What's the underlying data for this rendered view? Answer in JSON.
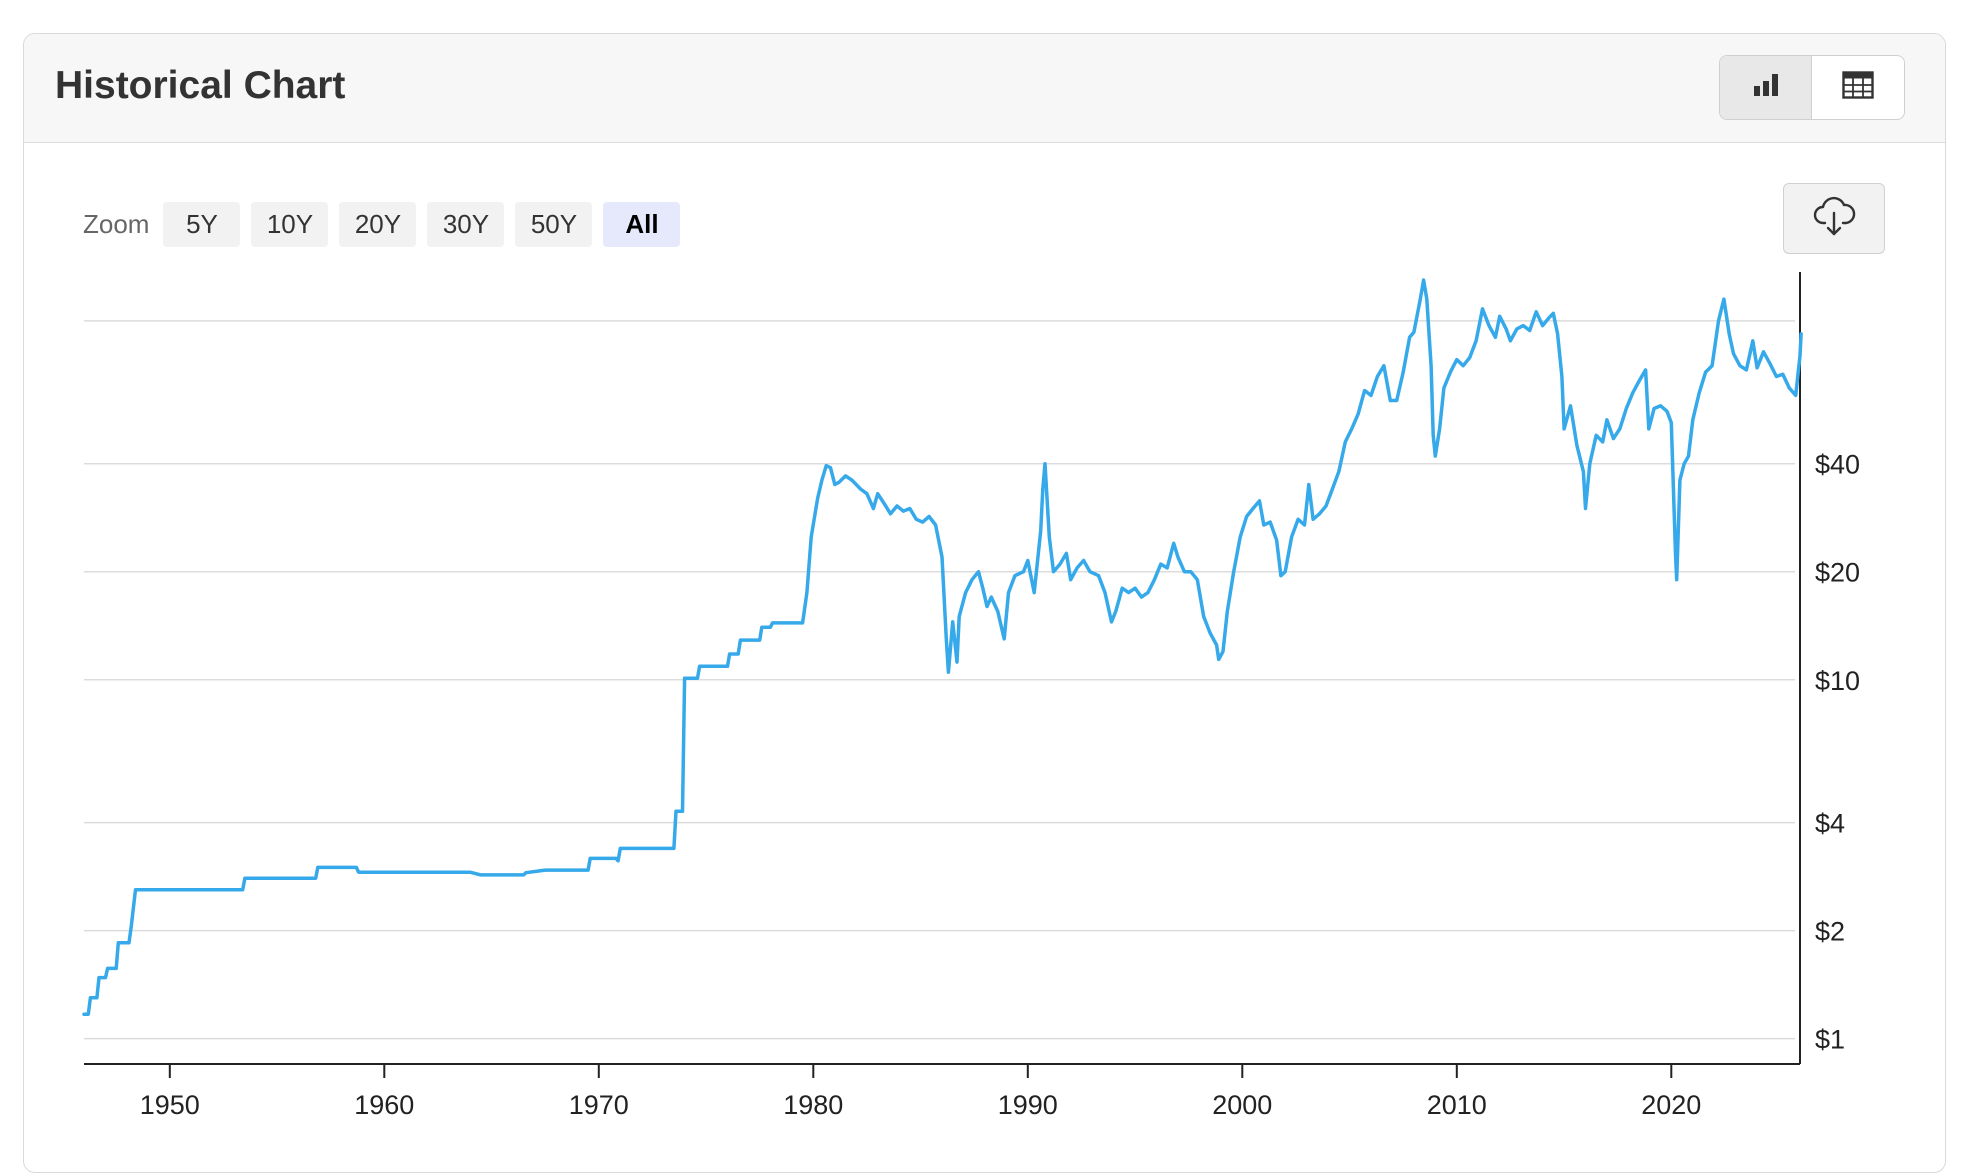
{
  "header": {
    "title": "Historical Chart"
  },
  "view_toggle": [
    {
      "icon": "bar-chart-icon",
      "active": true
    },
    {
      "icon": "table-icon",
      "active": false
    }
  ],
  "zoom": {
    "label": "Zoom",
    "options": [
      "5Y",
      "10Y",
      "20Y",
      "30Y",
      "50Y",
      "All"
    ],
    "selected": "All"
  },
  "download": {
    "icon": "cloud-download-icon"
  },
  "colors": {
    "line": "#35a9ea",
    "grid": "#dcdcdc",
    "axis": "#222222",
    "zoom_active_bg": "#e6e9fb"
  },
  "chart_data": {
    "type": "line",
    "title": "",
    "xlabel": "",
    "ylabel": "",
    "y_scale": "log",
    "y_axis_side": "right",
    "xlim": [
      1946,
      2026
    ],
    "ylim": [
      0.85,
      130
    ],
    "x_ticks": [
      1950,
      1960,
      1970,
      1980,
      1990,
      2000,
      2010,
      2020
    ],
    "x_tick_labels": [
      "1950",
      "1960",
      "1970",
      "1980",
      "1990",
      "2000",
      "2010",
      "2020"
    ],
    "y_ticks": [
      1,
      2,
      4,
      10,
      20,
      40,
      100
    ],
    "y_tick_labels": [
      "$1",
      "$2",
      "$4",
      "$10",
      "$20",
      "$40",
      ""
    ],
    "grid": true,
    "legend": "none",
    "series": [
      {
        "points": [
          [
            1946.0,
            1.17
          ],
          [
            1946.2,
            1.17
          ],
          [
            1946.3,
            1.3
          ],
          [
            1946.6,
            1.3
          ],
          [
            1946.7,
            1.48
          ],
          [
            1947.0,
            1.48
          ],
          [
            1947.1,
            1.57
          ],
          [
            1947.5,
            1.57
          ],
          [
            1947.6,
            1.85
          ],
          [
            1948.1,
            1.85
          ],
          [
            1948.2,
            2.05
          ],
          [
            1948.4,
            2.6
          ],
          [
            1953.0,
            2.6
          ],
          [
            1953.4,
            2.6
          ],
          [
            1953.5,
            2.8
          ],
          [
            1956.8,
            2.8
          ],
          [
            1956.9,
            3.0
          ],
          [
            1958.7,
            3.0
          ],
          [
            1958.8,
            2.91
          ],
          [
            1964.0,
            2.91
          ],
          [
            1964.5,
            2.86
          ],
          [
            1966.5,
            2.86
          ],
          [
            1966.6,
            2.9
          ],
          [
            1967.5,
            2.95
          ],
          [
            1969.5,
            2.95
          ],
          [
            1969.6,
            3.18
          ],
          [
            1970.8,
            3.18
          ],
          [
            1970.9,
            3.13
          ],
          [
            1971.0,
            3.39
          ],
          [
            1973.5,
            3.39
          ],
          [
            1973.6,
            4.3
          ],
          [
            1973.9,
            4.3
          ],
          [
            1974.0,
            10.1
          ],
          [
            1974.6,
            10.1
          ],
          [
            1974.7,
            10.9
          ],
          [
            1976.0,
            10.9
          ],
          [
            1976.1,
            11.8
          ],
          [
            1976.5,
            11.8
          ],
          [
            1976.6,
            12.9
          ],
          [
            1977.5,
            12.9
          ],
          [
            1977.6,
            14.0
          ],
          [
            1978.0,
            14.0
          ],
          [
            1978.1,
            14.4
          ],
          [
            1979.5,
            14.4
          ],
          [
            1979.7,
            17.5
          ],
          [
            1979.9,
            25.0
          ],
          [
            1980.2,
            32.0
          ],
          [
            1980.4,
            36.0
          ],
          [
            1980.6,
            39.5
          ],
          [
            1980.8,
            39.0
          ],
          [
            1981.0,
            35.0
          ],
          [
            1981.2,
            35.5
          ],
          [
            1981.5,
            37.0
          ],
          [
            1981.8,
            36.0
          ],
          [
            1982.0,
            35.0
          ],
          [
            1982.2,
            34.0
          ],
          [
            1982.5,
            33.0
          ],
          [
            1982.8,
            30.0
          ],
          [
            1983.0,
            33.0
          ],
          [
            1983.3,
            31.0
          ],
          [
            1983.6,
            29.0
          ],
          [
            1983.9,
            30.5
          ],
          [
            1984.2,
            29.5
          ],
          [
            1984.5,
            30.0
          ],
          [
            1984.8,
            28.0
          ],
          [
            1985.1,
            27.5
          ],
          [
            1985.4,
            28.5
          ],
          [
            1985.7,
            27.0
          ],
          [
            1986.0,
            22.0
          ],
          [
            1986.2,
            13.0
          ],
          [
            1986.3,
            10.5
          ],
          [
            1986.5,
            14.5
          ],
          [
            1986.7,
            11.2
          ],
          [
            1986.8,
            15.0
          ],
          [
            1987.1,
            17.5
          ],
          [
            1987.4,
            19.0
          ],
          [
            1987.7,
            20.0
          ],
          [
            1987.9,
            18.0
          ],
          [
            1988.1,
            16.0
          ],
          [
            1988.3,
            17.0
          ],
          [
            1988.6,
            15.5
          ],
          [
            1988.9,
            13.0
          ],
          [
            1989.1,
            17.5
          ],
          [
            1989.4,
            19.5
          ],
          [
            1989.8,
            20.0
          ],
          [
            1990.0,
            21.5
          ],
          [
            1990.3,
            17.5
          ],
          [
            1990.6,
            26.0
          ],
          [
            1990.7,
            34.0
          ],
          [
            1990.8,
            40.0
          ],
          [
            1991.0,
            25.0
          ],
          [
            1991.2,
            20.0
          ],
          [
            1991.5,
            21.0
          ],
          [
            1991.8,
            22.5
          ],
          [
            1992.0,
            19.0
          ],
          [
            1992.3,
            20.5
          ],
          [
            1992.6,
            21.5
          ],
          [
            1992.9,
            20.0
          ],
          [
            1993.3,
            19.5
          ],
          [
            1993.6,
            17.5
          ],
          [
            1993.9,
            14.5
          ],
          [
            1994.1,
            15.5
          ],
          [
            1994.4,
            18.0
          ],
          [
            1994.7,
            17.5
          ],
          [
            1995.0,
            18.0
          ],
          [
            1995.3,
            17.0
          ],
          [
            1995.6,
            17.5
          ],
          [
            1995.9,
            19.0
          ],
          [
            1996.2,
            21.0
          ],
          [
            1996.5,
            20.5
          ],
          [
            1996.8,
            24.0
          ],
          [
            1997.0,
            22.0
          ],
          [
            1997.3,
            20.0
          ],
          [
            1997.6,
            20.0
          ],
          [
            1997.9,
            19.0
          ],
          [
            1998.2,
            15.0
          ],
          [
            1998.5,
            13.5
          ],
          [
            1998.8,
            12.5
          ],
          [
            1998.9,
            11.4
          ],
          [
            1999.1,
            12.0
          ],
          [
            1999.3,
            15.5
          ],
          [
            1999.6,
            20.0
          ],
          [
            1999.9,
            25.0
          ],
          [
            2000.2,
            28.5
          ],
          [
            2000.5,
            30.0
          ],
          [
            2000.8,
            31.5
          ],
          [
            2001.0,
            27.0
          ],
          [
            2001.3,
            27.5
          ],
          [
            2001.6,
            24.5
          ],
          [
            2001.8,
            19.5
          ],
          [
            2002.0,
            20.0
          ],
          [
            2002.3,
            25.0
          ],
          [
            2002.6,
            28.0
          ],
          [
            2002.9,
            27.0
          ],
          [
            2003.1,
            35.0
          ],
          [
            2003.3,
            28.0
          ],
          [
            2003.6,
            29.0
          ],
          [
            2003.9,
            30.5
          ],
          [
            2004.2,
            34.0
          ],
          [
            2004.5,
            38.0
          ],
          [
            2004.8,
            46.0
          ],
          [
            2005.1,
            50.0
          ],
          [
            2005.4,
            55.0
          ],
          [
            2005.7,
            64.0
          ],
          [
            2006.0,
            62.0
          ],
          [
            2006.3,
            70.0
          ],
          [
            2006.6,
            75.0
          ],
          [
            2006.9,
            60.0
          ],
          [
            2007.2,
            60.0
          ],
          [
            2007.5,
            72.0
          ],
          [
            2007.8,
            90.0
          ],
          [
            2008.0,
            93.0
          ],
          [
            2008.3,
            115.0
          ],
          [
            2008.45,
            130.0
          ],
          [
            2008.6,
            115.0
          ],
          [
            2008.8,
            75.0
          ],
          [
            2008.9,
            48.0
          ],
          [
            2009.0,
            42.0
          ],
          [
            2009.2,
            50.0
          ],
          [
            2009.4,
            65.0
          ],
          [
            2009.7,
            72.0
          ],
          [
            2010.0,
            78.0
          ],
          [
            2010.3,
            75.0
          ],
          [
            2010.6,
            79.0
          ],
          [
            2010.9,
            88.0
          ],
          [
            2011.2,
            108.0
          ],
          [
            2011.5,
            97.0
          ],
          [
            2011.8,
            90.0
          ],
          [
            2012.0,
            103.0
          ],
          [
            2012.3,
            95.0
          ],
          [
            2012.5,
            88.0
          ],
          [
            2012.8,
            95.0
          ],
          [
            2013.1,
            97.0
          ],
          [
            2013.4,
            94.0
          ],
          [
            2013.7,
            106.0
          ],
          [
            2014.0,
            97.0
          ],
          [
            2014.3,
            102.0
          ],
          [
            2014.5,
            105.0
          ],
          [
            2014.7,
            92.0
          ],
          [
            2014.9,
            70.0
          ],
          [
            2015.0,
            50.0
          ],
          [
            2015.3,
            58.0
          ],
          [
            2015.6,
            45.0
          ],
          [
            2015.9,
            38.0
          ],
          [
            2016.0,
            30.0
          ],
          [
            2016.2,
            40.0
          ],
          [
            2016.5,
            48.0
          ],
          [
            2016.8,
            46.0
          ],
          [
            2017.0,
            53.0
          ],
          [
            2017.3,
            47.0
          ],
          [
            2017.6,
            50.0
          ],
          [
            2017.9,
            57.0
          ],
          [
            2018.2,
            63.0
          ],
          [
            2018.5,
            68.0
          ],
          [
            2018.8,
            73.0
          ],
          [
            2018.95,
            50.0
          ],
          [
            2019.2,
            57.0
          ],
          [
            2019.5,
            58.0
          ],
          [
            2019.8,
            56.0
          ],
          [
            2020.0,
            52.0
          ],
          [
            2020.2,
            22.0
          ],
          [
            2020.25,
            19.0
          ],
          [
            2020.4,
            36.0
          ],
          [
            2020.6,
            40.0
          ],
          [
            2020.8,
            42.0
          ],
          [
            2021.0,
            53.0
          ],
          [
            2021.3,
            63.0
          ],
          [
            2021.6,
            72.0
          ],
          [
            2021.9,
            75.0
          ],
          [
            2022.2,
            100.0
          ],
          [
            2022.45,
            115.0
          ],
          [
            2022.7,
            92.0
          ],
          [
            2022.9,
            81.0
          ],
          [
            2023.2,
            75.0
          ],
          [
            2023.5,
            73.0
          ],
          [
            2023.8,
            88.0
          ],
          [
            2024.0,
            74.0
          ],
          [
            2024.3,
            82.0
          ],
          [
            2024.6,
            76.0
          ],
          [
            2024.9,
            70.0
          ],
          [
            2025.2,
            71.0
          ],
          [
            2025.5,
            65.0
          ],
          [
            2025.8,
            62.0
          ],
          [
            2026.0,
            80.0
          ],
          [
            2026.05,
            92.0
          ]
        ]
      }
    ]
  }
}
